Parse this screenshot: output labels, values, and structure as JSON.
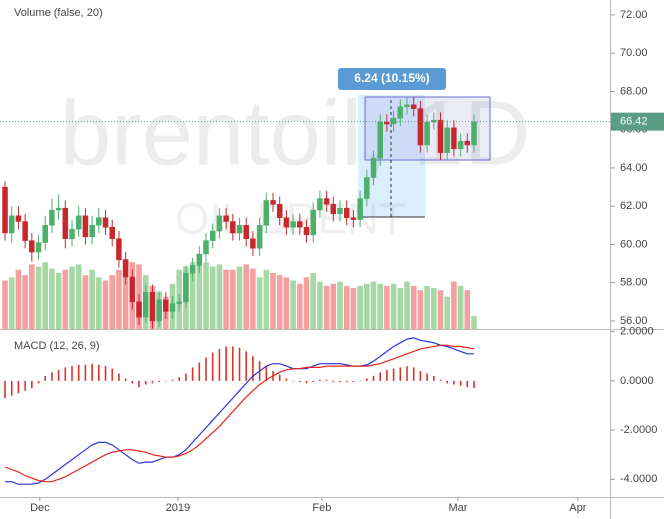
{
  "chart_data": [
    {
      "type": "candlestick",
      "title": "Volume (false, 20)",
      "watermark": "brentoil, 1D",
      "watermark_sub": "OIL BRENT",
      "annotation": "6.24 (10.15%)",
      "x": [
        0,
        1,
        2,
        3,
        4,
        5,
        6,
        7,
        8,
        9,
        10,
        11,
        12,
        13,
        14,
        15,
        16,
        17,
        18,
        19,
        20,
        21,
        22,
        23,
        24,
        25,
        26,
        27,
        28,
        29,
        30,
        31,
        32,
        33,
        34,
        35,
        36,
        37,
        38,
        39,
        40,
        41,
        42,
        43,
        44,
        45,
        46,
        47,
        48,
        49,
        50,
        51,
        52,
        53,
        54,
        55,
        56,
        57,
        58,
        59,
        60,
        61,
        62,
        63,
        64,
        65,
        66,
        67,
        68,
        69,
        70
      ],
      "open": [
        63.0,
        60.6,
        61.5,
        61.2,
        60.2,
        59.6,
        60.1,
        61.0,
        61.8,
        61.9,
        60.3,
        60.8,
        61.5,
        60.4,
        61.0,
        61.4,
        60.9,
        60.3,
        59.2,
        58.3,
        57.0,
        56.2,
        57.5,
        56.0,
        57.1,
        56.5,
        56.9,
        57.0,
        58.5,
        58.9,
        59.5,
        60.2,
        60.7,
        61.5,
        61.2,
        60.6,
        61.0,
        60.3,
        59.8,
        61.0,
        62.3,
        62.1,
        61.4,
        60.9,
        61.2,
        60.9,
        60.5,
        61.8,
        62.4,
        62.1,
        61.6,
        61.9,
        61.4,
        61.3,
        62.4,
        63.5,
        64.5,
        66.4,
        66.3,
        66.6,
        67.2,
        67.3,
        67.1,
        65.2,
        66.4,
        66.5,
        64.8,
        66.1,
        65.0,
        65.4,
        65.2
      ],
      "high": [
        63.3,
        62.0,
        62.0,
        61.6,
        60.6,
        60.5,
        61.5,
        62.4,
        62.6,
        62.3,
        61.3,
        62.0,
        61.9,
        61.5,
        61.9,
        61.8,
        61.3,
        60.7,
        59.6,
        58.7,
        57.4,
        57.9,
        57.9,
        57.5,
        57.5,
        57.3,
        57.4,
        58.9,
        59.3,
        59.9,
        60.6,
        61.1,
        61.9,
        61.9,
        61.6,
        61.4,
        61.4,
        60.7,
        61.4,
        62.7,
        62.7,
        62.5,
        61.8,
        61.6,
        61.6,
        61.3,
        62.2,
        62.8,
        62.8,
        62.5,
        62.3,
        62.3,
        61.8,
        62.8,
        63.9,
        64.9,
        66.8,
        66.8,
        67.0,
        67.6,
        67.7,
        67.7,
        67.5,
        66.8,
        66.9,
        66.9,
        66.5,
        66.5,
        65.8,
        65.8,
        66.8
      ],
      "low": [
        60.2,
        60.1,
        60.8,
        59.8,
        59.1,
        59.2,
        59.7,
        60.6,
        61.3,
        59.8,
        59.9,
        60.4,
        60.0,
        60.0,
        60.6,
        60.5,
        59.9,
        58.8,
        57.9,
        56.6,
        55.8,
        55.9,
        55.6,
        55.7,
        56.1,
        56.1,
        56.5,
        56.7,
        58.1,
        58.5,
        59.1,
        59.8,
        60.3,
        60.8,
        60.2,
        60.2,
        59.9,
        59.4,
        59.4,
        60.6,
        61.7,
        61.0,
        60.5,
        60.5,
        60.5,
        60.1,
        60.1,
        61.4,
        61.7,
        61.2,
        61.2,
        61.0,
        60.9,
        60.9,
        62.0,
        63.1,
        64.1,
        65.9,
        65.9,
        66.2,
        66.8,
        66.7,
        64.8,
        64.8,
        66.0,
        64.4,
        64.4,
        64.6,
        64.6,
        64.8,
        64.8
      ],
      "close": [
        60.6,
        61.5,
        61.2,
        60.2,
        59.6,
        60.1,
        61.0,
        61.8,
        61.9,
        60.3,
        60.8,
        61.5,
        60.4,
        61.0,
        61.4,
        60.9,
        60.3,
        59.2,
        58.3,
        57.0,
        56.2,
        57.5,
        56.0,
        57.1,
        56.5,
        56.9,
        57.0,
        58.5,
        58.9,
        59.5,
        60.2,
        60.7,
        61.5,
        61.2,
        60.6,
        61.0,
        60.3,
        59.8,
        61.0,
        62.3,
        62.1,
        61.4,
        60.9,
        61.2,
        60.9,
        60.5,
        61.8,
        62.4,
        62.1,
        61.6,
        61.9,
        61.4,
        61.3,
        62.4,
        63.5,
        64.5,
        66.4,
        66.3,
        66.6,
        67.2,
        67.3,
        67.1,
        65.2,
        66.4,
        66.5,
        64.8,
        66.1,
        65.0,
        65.4,
        65.2,
        66.42
      ],
      "volume": [
        45,
        48,
        55,
        50,
        60,
        58,
        62,
        56,
        52,
        55,
        58,
        60,
        50,
        55,
        48,
        45,
        50,
        55,
        65,
        62,
        60,
        50,
        40,
        35,
        30,
        42,
        55,
        58,
        62,
        60,
        62,
        58,
        60,
        55,
        55,
        58,
        60,
        56,
        48,
        55,
        52,
        50,
        48,
        45,
        42,
        48,
        52,
        44,
        40,
        42,
        44,
        40,
        38,
        40,
        42,
        44,
        42,
        40,
        42,
        38,
        44,
        40,
        36,
        40,
        38,
        36,
        30,
        44,
        40,
        36,
        12
      ],
      "up_color": "#4caf6a",
      "down_color": "#c8282d",
      "volume_up_color": "#a6d8a6",
      "volume_down_color": "#f4a0a0",
      "last_price": 66.42,
      "last_price_color": "#5a9c84",
      "ylim": [
        55.58,
        72.78
      ],
      "yticks": [
        {
          "value": 56,
          "label": "56.00"
        },
        {
          "value": 58,
          "label": "58.00"
        },
        {
          "value": 60,
          "label": "60.00"
        },
        {
          "value": 62,
          "label": "62.00"
        },
        {
          "value": 64,
          "label": "64.00"
        },
        {
          "value": 66,
          "label": "66.00"
        },
        {
          "value": 68,
          "label": "68.00"
        },
        {
          "value": 70,
          "label": "70.00"
        },
        {
          "value": 72,
          "label": "72.00"
        }
      ]
    },
    {
      "type": "line",
      "title": "MACD (12, 26, 9)",
      "series": [
        {
          "color": "#2b35d8",
          "values": [
            -4.1,
            -4.1,
            -4.2,
            -4.2,
            -4.2,
            -4.15,
            -4.0,
            -3.8,
            -3.6,
            -3.4,
            -3.2,
            -3.0,
            -2.8,
            -2.6,
            -2.5,
            -2.5,
            -2.6,
            -2.8,
            -3.0,
            -3.2,
            -3.35,
            -3.3,
            -3.3,
            -3.2,
            -3.1,
            -3.1,
            -3.0,
            -2.8,
            -2.5,
            -2.2,
            -1.9,
            -1.6,
            -1.3,
            -1.0,
            -0.7,
            -0.4,
            -0.1,
            0.2,
            0.4,
            0.6,
            0.7,
            0.7,
            0.6,
            0.5,
            0.5,
            0.5,
            0.6,
            0.7,
            0.7,
            0.7,
            0.7,
            0.65,
            0.6,
            0.6,
            0.65,
            0.8,
            1.0,
            1.2,
            1.4,
            1.55,
            1.7,
            1.75,
            1.65,
            1.6,
            1.55,
            1.45,
            1.4,
            1.3,
            1.2,
            1.1,
            1.1
          ]
        },
        {
          "color": "#e8231b",
          "values": [
            -3.5,
            -3.6,
            -3.7,
            -3.85,
            -3.95,
            -4.05,
            -4.1,
            -4.1,
            -4.0,
            -3.9,
            -3.75,
            -3.6,
            -3.45,
            -3.3,
            -3.15,
            -3.0,
            -2.9,
            -2.85,
            -2.8,
            -2.8,
            -2.85,
            -2.9,
            -3.0,
            -3.05,
            -3.1,
            -3.1,
            -3.05,
            -2.95,
            -2.8,
            -2.6,
            -2.35,
            -2.1,
            -1.85,
            -1.55,
            -1.25,
            -0.95,
            -0.65,
            -0.4,
            -0.15,
            0.05,
            0.2,
            0.35,
            0.45,
            0.5,
            0.5,
            0.55,
            0.55,
            0.55,
            0.6,
            0.6,
            0.6,
            0.6,
            0.6,
            0.6,
            0.6,
            0.65,
            0.7,
            0.8,
            0.9,
            1.0,
            1.1,
            1.2,
            1.3,
            1.35,
            1.4,
            1.45,
            1.45,
            1.4,
            1.4,
            1.35,
            1.3
          ]
        }
      ],
      "histogram": {
        "color": "#d9332c",
        "values": [
          -0.7,
          -0.6,
          -0.5,
          -0.4,
          -0.3,
          -0.1,
          0.2,
          0.35,
          0.45,
          0.55,
          0.6,
          0.65,
          0.65,
          0.7,
          0.65,
          0.6,
          0.5,
          0.3,
          0.1,
          -0.1,
          -0.25,
          -0.15,
          -0.1,
          -0.05,
          0.0,
          0.05,
          0.15,
          0.3,
          0.55,
          0.75,
          0.95,
          1.15,
          1.3,
          1.4,
          1.4,
          1.35,
          1.2,
          1.0,
          0.8,
          0.6,
          0.4,
          0.25,
          0.1,
          0.0,
          -0.05,
          -0.1,
          -0.05,
          0.05,
          0.05,
          -0.05,
          -0.05,
          -0.05,
          -0.05,
          0.0,
          0.1,
          0.2,
          0.35,
          0.45,
          0.5,
          0.55,
          0.6,
          0.55,
          0.4,
          0.3,
          0.2,
          0.05,
          -0.1,
          -0.15,
          -0.2,
          -0.25,
          -0.3
        ]
      },
      "xlim": [
        -0.75,
        90.3
      ],
      "xticks": [
        {
          "value": 5.2,
          "label": "Dec"
        },
        {
          "value": 25.8,
          "label": "2019"
        },
        {
          "value": 47.3,
          "label": "Feb"
        },
        {
          "value": 67.6,
          "label": "Mar"
        },
        {
          "value": 85.5,
          "label": "Apr"
        }
      ],
      "ylim": [
        -4.72,
        2.11
      ],
      "yticks": [
        {
          "value": 2,
          "label": "2.0000"
        },
        {
          "value": 0,
          "label": "0.0000"
        },
        {
          "value": -2,
          "label": "-2.0000"
        },
        {
          "value": -4,
          "label": "-4.0000"
        }
      ]
    }
  ]
}
